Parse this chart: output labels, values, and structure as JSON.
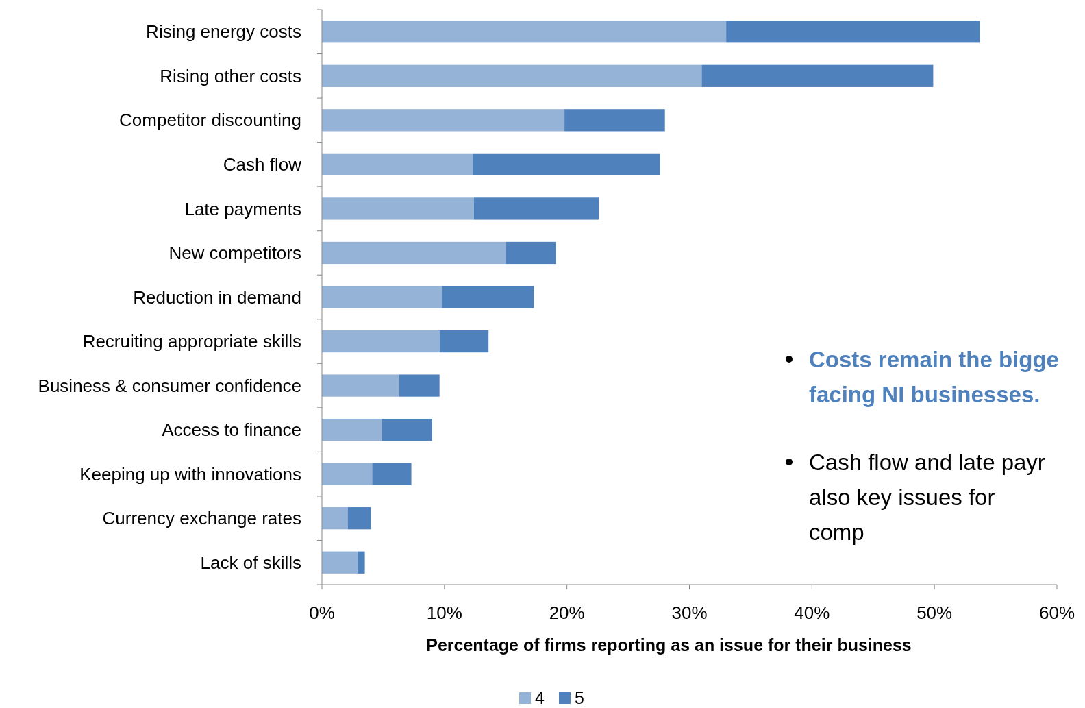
{
  "chart_data": {
    "type": "bar",
    "orientation": "horizontal",
    "stacked": true,
    "categories": [
      "Rising energy costs",
      "Rising other costs",
      "Competitor discounting",
      "Cash flow",
      "Late payments",
      "New competitors",
      "Reduction in demand",
      "Recruiting appropriate skills",
      "Business & consumer confidence",
      "Access to finance",
      "Keeping up with innovations",
      "Currency exchange rates",
      "Lack of skills"
    ],
    "series": [
      {
        "name": "4",
        "color": "#95b3d7",
        "values": [
          33,
          31,
          19.8,
          12.3,
          12.4,
          15,
          9.8,
          9.6,
          6.3,
          4.9,
          4.1,
          2.1,
          2.9
        ]
      },
      {
        "name": "5",
        "color": "#4f81bd",
        "values": [
          20.7,
          18.9,
          8.2,
          15.3,
          10.2,
          4.1,
          7.5,
          4,
          3.3,
          4.1,
          3.2,
          1.9,
          0.6
        ]
      }
    ],
    "xlim": [
      0,
      60
    ],
    "xticks": [
      {
        "value": 0,
        "label": "0%"
      },
      {
        "value": 10,
        "label": "10%"
      },
      {
        "value": 20,
        "label": "20%"
      },
      {
        "value": 30,
        "label": "30%"
      },
      {
        "value": 40,
        "label": "40%"
      },
      {
        "value": 50,
        "label": "50%"
      },
      {
        "value": 60,
        "label": "60%"
      }
    ],
    "xlabel": "Percentage of firms reporting as an issue for their business",
    "legend": "bottom",
    "grid": false,
    "annotations": [
      "Costs remain the bigge facing NI businesses.",
      "Cash flow and late payr also key issues for comp"
    ]
  }
}
